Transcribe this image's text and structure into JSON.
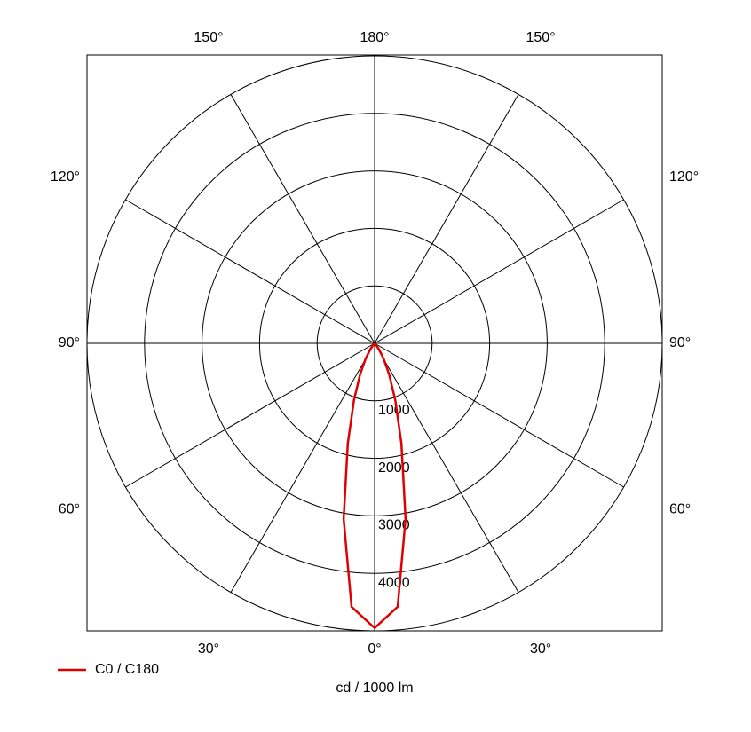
{
  "chart_data": {
    "type": "polar",
    "x_label": "cd / 1000 lm",
    "angle_ticks": [
      {
        "value": 0,
        "label": "0°"
      },
      {
        "value": 30,
        "label": "30°"
      },
      {
        "value": 60,
        "label": "60°"
      },
      {
        "value": 90,
        "label": "90°"
      },
      {
        "value": 120,
        "label": "120°"
      },
      {
        "value": 150,
        "label": "150°"
      },
      {
        "value": 180,
        "label": "180°"
      }
    ],
    "rlim": [
      0,
      5000
    ],
    "rticks": [
      1000,
      2000,
      3000,
      4000
    ],
    "x": [
      -50,
      -45,
      -40,
      -35,
      -30,
      -25,
      -20,
      -15,
      -10,
      -5,
      0,
      5,
      10,
      15,
      20,
      25,
      30,
      35,
      40,
      45,
      50
    ],
    "series": [
      {
        "name": "C0 / C180",
        "color": "#e00000",
        "values": [
          0,
          20,
          60,
          150,
          320,
          600,
          1050,
          1800,
          3100,
          4600,
          4950,
          4600,
          3100,
          1800,
          1050,
          600,
          320,
          150,
          60,
          20,
          0
        ]
      }
    ]
  }
}
